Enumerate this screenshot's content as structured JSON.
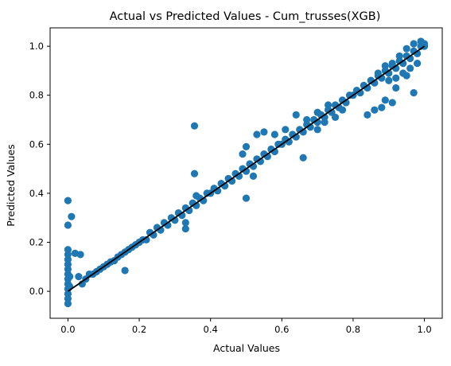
{
  "chart_data": {
    "type": "scatter",
    "title": "Actual vs Predicted Values - Cum_trusses(XGB)",
    "xlabel": "Actual Values",
    "ylabel": "Predicted Values",
    "xlim": [
      -0.05,
      1.05
    ],
    "ylim": [
      -0.11,
      1.075
    ],
    "xticks": [
      0.0,
      0.2,
      0.4,
      0.6,
      0.8,
      1.0
    ],
    "xtick_labels": [
      "0.0",
      "0.2",
      "0.4",
      "0.6",
      "0.8",
      "1.0"
    ],
    "yticks": [
      0.0,
      0.2,
      0.4,
      0.6,
      0.8,
      1.0
    ],
    "ytick_labels": [
      "0.0",
      "0.2",
      "0.4",
      "0.6",
      "0.8",
      "1.0"
    ],
    "grid": false,
    "colors": {
      "points": "#1f77b4",
      "ideal_line": "#000000"
    },
    "ideal_line": {
      "x": [
        0.0,
        1.0
      ],
      "y": [
        0.0,
        1.0
      ]
    },
    "points": [
      [
        0.0,
        0.37
      ],
      [
        0.0,
        0.27
      ],
      [
        0.01,
        0.305
      ],
      [
        0.0,
        0.17
      ],
      [
        0.0,
        0.15
      ],
      [
        0.0,
        0.13
      ],
      [
        0.0,
        0.11
      ],
      [
        0.0,
        0.09
      ],
      [
        0.0,
        0.07
      ],
      [
        0.0,
        0.05
      ],
      [
        0.0,
        0.03
      ],
      [
        0.0,
        0.01
      ],
      [
        0.0,
        -0.01
      ],
      [
        0.0,
        -0.03
      ],
      [
        0.0,
        -0.05
      ],
      [
        0.005,
        0.02
      ],
      [
        0.005,
        0.06
      ],
      [
        0.02,
        0.155
      ],
      [
        0.035,
        0.15
      ],
      [
        0.03,
        0.06
      ],
      [
        0.04,
        0.03
      ],
      [
        0.05,
        0.05
      ],
      [
        0.06,
        0.07
      ],
      [
        0.07,
        0.07
      ],
      [
        0.08,
        0.08
      ],
      [
        0.09,
        0.09
      ],
      [
        0.1,
        0.1
      ],
      [
        0.11,
        0.11
      ],
      [
        0.12,
        0.12
      ],
      [
        0.13,
        0.125
      ],
      [
        0.14,
        0.14
      ],
      [
        0.15,
        0.15
      ],
      [
        0.16,
        0.085
      ],
      [
        0.16,
        0.16
      ],
      [
        0.17,
        0.17
      ],
      [
        0.18,
        0.18
      ],
      [
        0.19,
        0.19
      ],
      [
        0.2,
        0.2
      ],
      [
        0.21,
        0.21
      ],
      [
        0.22,
        0.21
      ],
      [
        0.23,
        0.24
      ],
      [
        0.24,
        0.23
      ],
      [
        0.25,
        0.26
      ],
      [
        0.26,
        0.25
      ],
      [
        0.27,
        0.28
      ],
      [
        0.28,
        0.27
      ],
      [
        0.29,
        0.3
      ],
      [
        0.3,
        0.29
      ],
      [
        0.31,
        0.32
      ],
      [
        0.32,
        0.31
      ],
      [
        0.33,
        0.34
      ],
      [
        0.34,
        0.33
      ],
      [
        0.35,
        0.36
      ],
      [
        0.36,
        0.35
      ],
      [
        0.37,
        0.38
      ],
      [
        0.38,
        0.37
      ],
      [
        0.39,
        0.4
      ],
      [
        0.355,
        0.675
      ],
      [
        0.355,
        0.48
      ],
      [
        0.33,
        0.28
      ],
      [
        0.33,
        0.255
      ],
      [
        0.36,
        0.39
      ],
      [
        0.4,
        0.4
      ],
      [
        0.41,
        0.42
      ],
      [
        0.42,
        0.41
      ],
      [
        0.43,
        0.44
      ],
      [
        0.44,
        0.43
      ],
      [
        0.45,
        0.46
      ],
      [
        0.46,
        0.45
      ],
      [
        0.47,
        0.48
      ],
      [
        0.48,
        0.47
      ],
      [
        0.49,
        0.5
      ],
      [
        0.5,
        0.49
      ],
      [
        0.51,
        0.52
      ],
      [
        0.52,
        0.51
      ],
      [
        0.53,
        0.54
      ],
      [
        0.54,
        0.53
      ],
      [
        0.55,
        0.56
      ],
      [
        0.56,
        0.55
      ],
      [
        0.57,
        0.58
      ],
      [
        0.58,
        0.57
      ],
      [
        0.59,
        0.6
      ],
      [
        0.5,
        0.59
      ],
      [
        0.53,
        0.64
      ],
      [
        0.55,
        0.65
      ],
      [
        0.58,
        0.64
      ],
      [
        0.61,
        0.66
      ],
      [
        0.64,
        0.72
      ],
      [
        0.5,
        0.38
      ],
      [
        0.52,
        0.47
      ],
      [
        0.49,
        0.56
      ],
      [
        0.6,
        0.6
      ],
      [
        0.61,
        0.62
      ],
      [
        0.62,
        0.61
      ],
      [
        0.63,
        0.64
      ],
      [
        0.64,
        0.63
      ],
      [
        0.65,
        0.66
      ],
      [
        0.66,
        0.65
      ],
      [
        0.67,
        0.68
      ],
      [
        0.68,
        0.67
      ],
      [
        0.69,
        0.7
      ],
      [
        0.7,
        0.69
      ],
      [
        0.71,
        0.72
      ],
      [
        0.72,
        0.71
      ],
      [
        0.73,
        0.74
      ],
      [
        0.74,
        0.73
      ],
      [
        0.75,
        0.76
      ],
      [
        0.76,
        0.75
      ],
      [
        0.77,
        0.78
      ],
      [
        0.78,
        0.77
      ],
      [
        0.79,
        0.8
      ],
      [
        0.66,
        0.545
      ],
      [
        0.67,
        0.7
      ],
      [
        0.7,
        0.73
      ],
      [
        0.73,
        0.76
      ],
      [
        0.75,
        0.71
      ],
      [
        0.77,
        0.74
      ],
      [
        0.7,
        0.66
      ],
      [
        0.72,
        0.69
      ],
      [
        0.8,
        0.8
      ],
      [
        0.81,
        0.82
      ],
      [
        0.82,
        0.81
      ],
      [
        0.83,
        0.84
      ],
      [
        0.84,
        0.83
      ],
      [
        0.85,
        0.86
      ],
      [
        0.86,
        0.85
      ],
      [
        0.87,
        0.88
      ],
      [
        0.88,
        0.87
      ],
      [
        0.89,
        0.9
      ],
      [
        0.9,
        0.89
      ],
      [
        0.91,
        0.92
      ],
      [
        0.92,
        0.91
      ],
      [
        0.93,
        0.94
      ],
      [
        0.94,
        0.93
      ],
      [
        0.95,
        0.96
      ],
      [
        0.96,
        0.95
      ],
      [
        0.97,
        0.98
      ],
      [
        0.98,
        0.97
      ],
      [
        0.99,
        1.0
      ],
      [
        1.0,
        1.0
      ],
      [
        0.84,
        0.72
      ],
      [
        0.86,
        0.74
      ],
      [
        0.88,
        0.75
      ],
      [
        0.85,
        0.86
      ],
      [
        0.87,
        0.89
      ],
      [
        0.89,
        0.92
      ],
      [
        0.91,
        0.93
      ],
      [
        0.93,
        0.96
      ],
      [
        0.95,
        0.99
      ],
      [
        0.97,
        1.01
      ],
      [
        0.99,
        1.02
      ],
      [
        1.0,
        1.01
      ],
      [
        0.98,
        0.93
      ],
      [
        0.96,
        0.91
      ],
      [
        0.94,
        0.89
      ],
      [
        0.92,
        0.87
      ],
      [
        0.9,
        0.86
      ],
      [
        0.89,
        0.78
      ],
      [
        0.91,
        0.77
      ],
      [
        0.97,
        0.81
      ],
      [
        0.92,
        0.83
      ],
      [
        0.95,
        0.88
      ]
    ]
  }
}
